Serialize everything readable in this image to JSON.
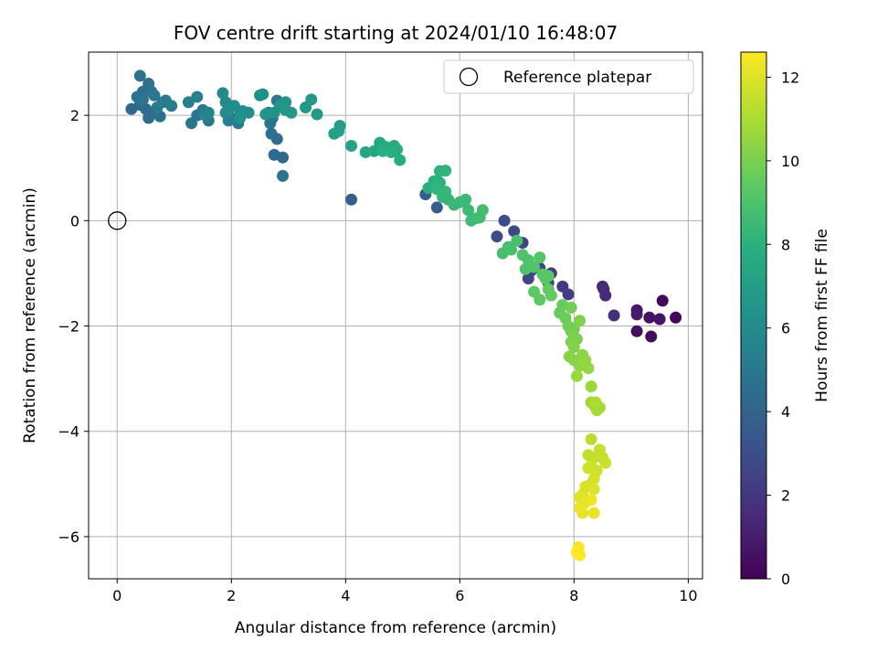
{
  "chart_data": {
    "type": "scatter",
    "title": "FOV centre drift starting at 2024/01/10 16:48:07",
    "xlabel": "Angular distance from reference (arcmin)",
    "ylabel": "Rotation from reference (arcmin)",
    "xlim": [
      -0.5,
      10.25
    ],
    "ylim": [
      -6.8,
      3.2
    ],
    "xticks": [
      0,
      2,
      4,
      6,
      8,
      10
    ],
    "yticks": [
      -6,
      -4,
      -2,
      0,
      2
    ],
    "grid": true,
    "legend": {
      "location": "upper right",
      "entries": [
        "Reference platepar"
      ]
    },
    "reference_point": {
      "x": 0,
      "y": 0,
      "label": "Reference platepar"
    },
    "colorbar": {
      "label": "Hours from first FF file",
      "colormap": "viridis",
      "range": [
        0,
        12.6
      ],
      "ticks": [
        0,
        2,
        4,
        6,
        8,
        10,
        12
      ]
    },
    "series": [
      {
        "points": [
          [
            9.78,
            -1.84,
            0.2
          ],
          [
            9.55,
            -1.52,
            0.3
          ],
          [
            9.35,
            -2.2,
            0.4
          ],
          [
            9.1,
            -2.1,
            0.5
          ],
          [
            9.32,
            -1.84,
            0.6
          ],
          [
            9.5,
            -1.87,
            0.7
          ],
          [
            9.1,
            -1.7,
            0.8
          ],
          [
            9.1,
            -1.78,
            0.9
          ],
          [
            8.5,
            -1.25,
            1.3
          ],
          [
            8.55,
            -1.42,
            1.4
          ],
          [
            8.52,
            -1.3,
            1.5
          ],
          [
            8.7,
            -1.8,
            1.7
          ],
          [
            7.8,
            -1.25,
            2.1
          ],
          [
            7.9,
            -1.4,
            2.2
          ],
          [
            7.6,
            -1.0,
            2.3
          ],
          [
            7.55,
            -1.18,
            2.4
          ],
          [
            7.4,
            -0.9,
            2.5
          ],
          [
            7.25,
            -0.95,
            2.6
          ],
          [
            7.2,
            -1.1,
            2.6
          ],
          [
            7.1,
            -0.42,
            2.7
          ],
          [
            6.95,
            -0.2,
            2.8
          ],
          [
            6.65,
            -0.3,
            2.9
          ],
          [
            6.78,
            0.0,
            3.0
          ],
          [
            5.6,
            0.25,
            3.6
          ],
          [
            5.4,
            0.5,
            3.7
          ],
          [
            4.1,
            0.4,
            3.9
          ],
          [
            2.9,
            1.2,
            4.3
          ],
          [
            2.75,
            1.25,
            4.4
          ],
          [
            2.8,
            1.55,
            4.5
          ],
          [
            2.7,
            1.65,
            4.6
          ],
          [
            2.68,
            1.85,
            4.7
          ],
          [
            2.72,
            1.95,
            4.8
          ],
          [
            2.65,
            2.05,
            4.9
          ],
          [
            2.8,
            2.28,
            5.0
          ],
          [
            2.12,
            1.85,
            5.1
          ],
          [
            2.15,
            2.0,
            5.2
          ],
          [
            2.1,
            1.95,
            5.3
          ],
          [
            1.95,
            1.9,
            5.4
          ],
          [
            1.3,
            1.85,
            4.9
          ],
          [
            1.4,
            2.0,
            4.9
          ],
          [
            1.6,
            1.9,
            5.0
          ],
          [
            1.5,
            2.1,
            5.1
          ],
          [
            2.9,
            0.85,
            4.8
          ],
          [
            0.25,
            2.12,
            4.2
          ],
          [
            0.4,
            2.2,
            4.3
          ],
          [
            0.5,
            2.12,
            4.4
          ],
          [
            0.55,
            1.95,
            4.5
          ],
          [
            0.6,
            2.05,
            4.5
          ],
          [
            0.75,
            1.98,
            4.6
          ],
          [
            0.45,
            2.45,
            4.6
          ],
          [
            0.55,
            2.6,
            4.7
          ],
          [
            0.6,
            2.45,
            4.7
          ],
          [
            0.4,
            2.75,
            4.8
          ],
          [
            0.35,
            2.35,
            4.8
          ],
          [
            0.45,
            2.3,
            4.9
          ],
          [
            0.65,
            2.38,
            5.0
          ],
          [
            0.8,
            2.25,
            5.1
          ],
          [
            0.85,
            2.28,
            5.2
          ],
          [
            0.95,
            2.18,
            5.3
          ],
          [
            0.7,
            2.15,
            5.3
          ],
          [
            1.25,
            2.25,
            5.4
          ],
          [
            1.4,
            2.35,
            5.5
          ],
          [
            1.6,
            2.05,
            5.6
          ],
          [
            1.55,
            2.0,
            5.7
          ],
          [
            1.85,
            2.42,
            5.9
          ],
          [
            1.9,
            2.25,
            6.0
          ],
          [
            1.95,
            2.1,
            6.0
          ],
          [
            2.05,
            2.18,
            6.1
          ],
          [
            2.2,
            2.08,
            6.2
          ],
          [
            2.3,
            2.05,
            6.2
          ],
          [
            2.5,
            2.38,
            6.3
          ],
          [
            2.55,
            2.4,
            6.3
          ],
          [
            2.6,
            2.02,
            6.4
          ],
          [
            2.75,
            2.05,
            6.4
          ],
          [
            2.85,
            2.18,
            6.5
          ],
          [
            2.95,
            2.25,
            6.5
          ],
          [
            2.95,
            2.1,
            6.6
          ],
          [
            3.05,
            2.05,
            6.6
          ],
          [
            3.3,
            2.15,
            6.7
          ],
          [
            3.4,
            2.3,
            6.7
          ],
          [
            3.5,
            2.02,
            6.8
          ],
          [
            1.9,
            2.05,
            6.1
          ],
          [
            2.15,
            1.95,
            6.3
          ],
          [
            3.9,
            1.8,
            7.0
          ],
          [
            3.88,
            1.7,
            7.1
          ],
          [
            3.8,
            1.65,
            7.2
          ],
          [
            4.1,
            1.42,
            7.3
          ],
          [
            4.35,
            1.3,
            7.4
          ],
          [
            4.5,
            1.32,
            7.5
          ],
          [
            4.6,
            1.48,
            7.5
          ],
          [
            4.7,
            1.4,
            7.6
          ],
          [
            4.75,
            1.38,
            7.7
          ],
          [
            4.85,
            1.42,
            7.7
          ],
          [
            4.9,
            1.35,
            7.8
          ],
          [
            4.95,
            1.15,
            7.8
          ],
          [
            4.65,
            1.32,
            7.9
          ],
          [
            4.8,
            1.3,
            7.9
          ],
          [
            5.45,
            0.62,
            7.9
          ],
          [
            5.55,
            0.75,
            8.0
          ],
          [
            5.65,
            0.72,
            8.0
          ],
          [
            5.75,
            0.95,
            8.1
          ],
          [
            5.65,
            0.94,
            8.1
          ],
          [
            5.6,
            0.6,
            8.2
          ],
          [
            5.7,
            0.45,
            8.2
          ],
          [
            5.75,
            0.55,
            8.3
          ],
          [
            5.8,
            0.4,
            8.3
          ],
          [
            5.9,
            0.3,
            8.4
          ],
          [
            6.0,
            0.35,
            8.4
          ],
          [
            6.1,
            0.4,
            8.5
          ],
          [
            6.15,
            0.2,
            8.5
          ],
          [
            6.2,
            0.0,
            8.6
          ],
          [
            6.3,
            0.05,
            8.6
          ],
          [
            6.4,
            0.2,
            8.7
          ],
          [
            6.35,
            0.06,
            8.7
          ],
          [
            6.85,
            -0.5,
            8.8
          ],
          [
            6.75,
            -0.62,
            8.8
          ],
          [
            6.9,
            -0.55,
            8.9
          ],
          [
            7.0,
            -0.38,
            8.9
          ],
          [
            7.1,
            -0.65,
            9.0
          ],
          [
            7.2,
            -0.75,
            9.0
          ],
          [
            7.15,
            -0.92,
            9.1
          ],
          [
            7.3,
            -0.88,
            9.1
          ],
          [
            7.4,
            -0.7,
            9.2
          ],
          [
            7.45,
            -1.02,
            9.2
          ],
          [
            7.5,
            -1.1,
            9.3
          ],
          [
            7.55,
            -1.05,
            9.3
          ],
          [
            7.3,
            -1.35,
            9.4
          ],
          [
            7.4,
            -1.5,
            9.4
          ],
          [
            7.55,
            -1.3,
            9.5
          ],
          [
            7.6,
            -1.42,
            9.5
          ],
          [
            7.75,
            -1.75,
            9.6
          ],
          [
            7.8,
            -1.6,
            9.6
          ],
          [
            7.85,
            -1.85,
            9.7
          ],
          [
            7.9,
            -2.0,
            9.8
          ],
          [
            7.95,
            -2.1,
            9.8
          ],
          [
            8.0,
            -2.05,
            9.9
          ],
          [
            7.95,
            -1.65,
            9.9
          ],
          [
            8.0,
            -2.2,
            10.0
          ],
          [
            8.05,
            -2.25,
            10.0
          ],
          [
            8.1,
            -1.9,
            10.1
          ],
          [
            7.95,
            -2.3,
            10.1
          ],
          [
            8.0,
            -2.4,
            10.2
          ],
          [
            7.92,
            -2.58,
            10.3
          ],
          [
            8.0,
            -2.65,
            10.3
          ],
          [
            8.1,
            -2.75,
            10.4
          ],
          [
            8.15,
            -2.55,
            10.4
          ],
          [
            8.2,
            -2.65,
            10.5
          ],
          [
            8.25,
            -2.8,
            10.5
          ],
          [
            8.05,
            -2.95,
            10.6
          ],
          [
            8.3,
            -3.15,
            10.7
          ],
          [
            8.3,
            -3.45,
            10.8
          ],
          [
            8.35,
            -3.5,
            10.8
          ],
          [
            8.45,
            -3.55,
            10.9
          ],
          [
            8.4,
            -3.6,
            10.9
          ],
          [
            8.38,
            -3.45,
            11.0
          ],
          [
            8.3,
            -4.15,
            11.3
          ],
          [
            8.25,
            -4.45,
            11.4
          ],
          [
            8.35,
            -4.5,
            11.4
          ],
          [
            8.45,
            -4.35,
            11.5
          ],
          [
            8.5,
            -4.5,
            11.5
          ],
          [
            8.55,
            -4.6,
            11.6
          ],
          [
            8.3,
            -4.65,
            11.6
          ],
          [
            8.25,
            -4.7,
            11.7
          ],
          [
            8.4,
            -4.75,
            11.7
          ],
          [
            8.35,
            -4.9,
            11.8
          ],
          [
            8.3,
            -5.0,
            11.8
          ],
          [
            8.2,
            -5.05,
            11.9
          ],
          [
            8.15,
            -5.2,
            11.9
          ],
          [
            8.1,
            -5.25,
            12.0
          ],
          [
            8.35,
            -5.1,
            12.0
          ],
          [
            8.2,
            -5.35,
            12.1
          ],
          [
            8.1,
            -5.45,
            12.1
          ],
          [
            8.15,
            -5.55,
            12.2
          ],
          [
            8.35,
            -5.55,
            12.2
          ],
          [
            8.3,
            -5.3,
            12.3
          ],
          [
            8.08,
            -6.2,
            12.5
          ],
          [
            8.05,
            -6.3,
            12.6
          ],
          [
            8.1,
            -6.35,
            12.6
          ]
        ]
      }
    ]
  }
}
